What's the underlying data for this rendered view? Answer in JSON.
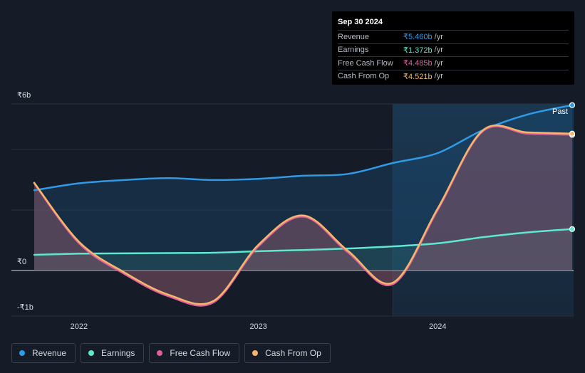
{
  "tooltip": {
    "date": "Sep 30 2024",
    "rows": [
      {
        "label": "Revenue",
        "value": "₹5.460b",
        "unit": "/yr",
        "color": "#2f9ae6"
      },
      {
        "label": "Earnings",
        "value": "₹1.372b",
        "unit": "/yr",
        "color": "#5fe8cf"
      },
      {
        "label": "Free Cash Flow",
        "value": "₹4.485b",
        "unit": "/yr",
        "color": "#e0609e"
      },
      {
        "label": "Cash From Op",
        "value": "₹4.521b",
        "unit": "/yr",
        "color": "#f5b66a"
      }
    ]
  },
  "past_label": "Past",
  "legend": [
    {
      "label": "Revenue",
      "color": "#2f9ae6"
    },
    {
      "label": "Earnings",
      "color": "#5fe8cf"
    },
    {
      "label": "Free Cash Flow",
      "color": "#e0609e"
    },
    {
      "label": "Cash From Op",
      "color": "#f5b66a"
    }
  ],
  "chart_data": {
    "type": "line",
    "y_unit": "₹ billions",
    "ylim": [
      -1.5,
      5.5
    ],
    "y_ticks": [
      {
        "value": 5.5,
        "label": "₹6b"
      },
      {
        "value": 0,
        "label": "₹0"
      },
      {
        "value": -1.5,
        "label": "-₹1b"
      }
    ],
    "x_ticks": [
      {
        "value": 2022.0,
        "label": "2022"
      },
      {
        "value": 2023.0,
        "label": "2023"
      },
      {
        "value": 2024.0,
        "label": "2024"
      }
    ],
    "xlim": [
      2021.75,
      2024.75
    ],
    "past_start": 2023.75,
    "series": [
      {
        "name": "Revenue",
        "color": "#2f9ae6",
        "x": [
          2021.75,
          2022.0,
          2022.25,
          2022.5,
          2022.75,
          2023.0,
          2023.25,
          2023.5,
          2023.75,
          2024.0,
          2024.25,
          2024.5,
          2024.75
        ],
        "y": [
          2.65,
          2.88,
          2.99,
          3.05,
          2.99,
          3.03,
          3.13,
          3.19,
          3.55,
          3.88,
          4.63,
          5.15,
          5.46
        ]
      },
      {
        "name": "Earnings",
        "color": "#5fe8cf",
        "x": [
          2021.75,
          2022.0,
          2022.25,
          2022.5,
          2022.75,
          2023.0,
          2023.25,
          2023.5,
          2023.75,
          2024.0,
          2024.25,
          2024.5,
          2024.75
        ],
        "y": [
          0.52,
          0.56,
          0.57,
          0.58,
          0.59,
          0.64,
          0.68,
          0.73,
          0.8,
          0.9,
          1.1,
          1.26,
          1.37
        ]
      },
      {
        "name": "Free Cash Flow",
        "color": "#e0609e",
        "x": [
          2021.75,
          2022.0,
          2022.25,
          2022.5,
          2022.75,
          2023.0,
          2023.25,
          2023.5,
          2023.75,
          2024.0,
          2024.25,
          2024.5,
          2024.75
        ],
        "y": [
          2.88,
          0.9,
          -0.1,
          -0.85,
          -1.05,
          0.8,
          1.78,
          0.6,
          -0.45,
          2.0,
          4.59,
          4.52,
          4.48
        ]
      },
      {
        "name": "Cash From Op",
        "color": "#f5b66a",
        "x": [
          2021.75,
          2022.0,
          2022.25,
          2022.5,
          2022.75,
          2023.0,
          2023.25,
          2023.5,
          2023.75,
          2024.0,
          2024.25,
          2024.5,
          2024.75
        ],
        "y": [
          2.9,
          0.95,
          -0.05,
          -0.8,
          -1.0,
          0.85,
          1.82,
          0.65,
          -0.4,
          2.05,
          4.62,
          4.56,
          4.52
        ]
      }
    ]
  }
}
